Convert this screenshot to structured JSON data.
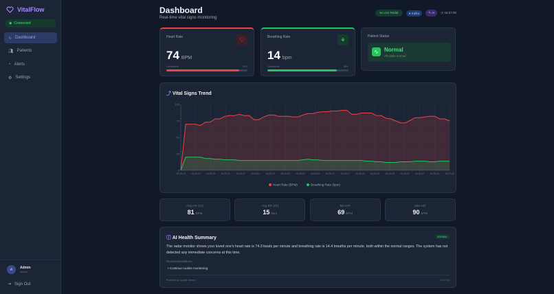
{
  "sidebar": {
    "brand": "VitalFlow",
    "connection": "Connected",
    "items": [
      {
        "label": "Dashboard",
        "icon": "activity-icon",
        "active": true
      },
      {
        "label": "Patients",
        "icon": "users-icon"
      },
      {
        "label": "Alerts",
        "icon": "bell-icon"
      },
      {
        "label": "Settings",
        "icon": "gear-icon"
      }
    ],
    "user": {
      "initial": "A",
      "name": "Admin",
      "role": "admin"
    },
    "signout": "Sign Out"
  },
  "header": {
    "title": "Dashboard",
    "subtitle": "Real-time vital signs monitoring",
    "badges": {
      "radar": "Live Radar",
      "kafka": "Kafka",
      "ai": "AI"
    },
    "time": "16:27:00"
  },
  "heart": {
    "label": "Heart Rate",
    "value": "74",
    "unit": "BPM",
    "confidence_label": "Confidence",
    "confidence": "90%",
    "confidence_value": 90,
    "color": "#ef4444"
  },
  "breath": {
    "label": "Breathing Rate",
    "value": "14",
    "unit": "bpm",
    "confidence_label": "Confidence",
    "confidence": "86%",
    "confidence_value": 86,
    "color": "#22c55e"
  },
  "status": {
    "label": "Patient Status",
    "value": "Normal",
    "detail": "All vitals normal"
  },
  "chart_data": {
    "type": "area",
    "title": "Vital Signs Trend",
    "ylim": [
      0,
      100
    ],
    "y_ticks": [
      "0",
      "25",
      "50",
      "75",
      "100"
    ],
    "grid": true,
    "legend": "bottom",
    "x_ticks": [
      "16:25:13",
      "16:25:19",
      "16:25:25",
      "16:25:31",
      "16:25:37",
      "16:25:41",
      "16:25:47",
      "16:25:53",
      "16:25:59",
      "16:26:05",
      "16:26:11",
      "16:26:17",
      "16:26:23",
      "16:26:29",
      "16:26:35",
      "16:26:41",
      "16:26:47",
      "16:26:54",
      "16:27:00"
    ],
    "series": [
      {
        "name": "Heart Rate (BPM)",
        "color": "#ef4444",
        "values": [
          0,
          70,
          70,
          70,
          68,
          73,
          73,
          78,
          78,
          82,
          83,
          83,
          85,
          83,
          83,
          77,
          77,
          81,
          84,
          84,
          82,
          82,
          82,
          81,
          81,
          84,
          86,
          86,
          88,
          89,
          89,
          90,
          90,
          91,
          91,
          85,
          85,
          87,
          87,
          87,
          83,
          83,
          79,
          78,
          75,
          72,
          72,
          76,
          80,
          80,
          81,
          82,
          82,
          78,
          78,
          75
        ]
      },
      {
        "name": "Breathing Rate (bpm)",
        "color": "#22c55e",
        "values": [
          0,
          20,
          20,
          20,
          20,
          18,
          18,
          17,
          17,
          16,
          16,
          16,
          15,
          15,
          15,
          15,
          15,
          15,
          15,
          15,
          15,
          15,
          15,
          15,
          15,
          16,
          17,
          16,
          16,
          15,
          15,
          15,
          15,
          15,
          15,
          15,
          15,
          15,
          14,
          14,
          13,
          13,
          12,
          12,
          12,
          13,
          13,
          13,
          14,
          14,
          14,
          13,
          13,
          14,
          14,
          14
        ]
      }
    ]
  },
  "stats": [
    {
      "label": "Avg HR (1h)",
      "value": "81",
      "unit": "BPM"
    },
    {
      "label": "Avg BR (1h)",
      "value": "15",
      "unit": "bpm"
    },
    {
      "label": "Min HR",
      "value": "69",
      "unit": "BPM"
    },
    {
      "label": "Max HR",
      "value": "90",
      "unit": "BPM"
    }
  ],
  "ai": {
    "title": "AI Health Summary",
    "badge": "NORMAL",
    "text": "The radar monitor shows your loved one's heart rate is 74.3 beats per minute and breathing rate is 14.4 breaths per minute, both within the normal ranges. The system has not detected any immediate concerns at this time.",
    "rec_label": "Recommendations:",
    "recs": [
      "Continue routine monitoring"
    ],
    "footer": "Powered by Google Gemini",
    "time": "16:27:00"
  }
}
